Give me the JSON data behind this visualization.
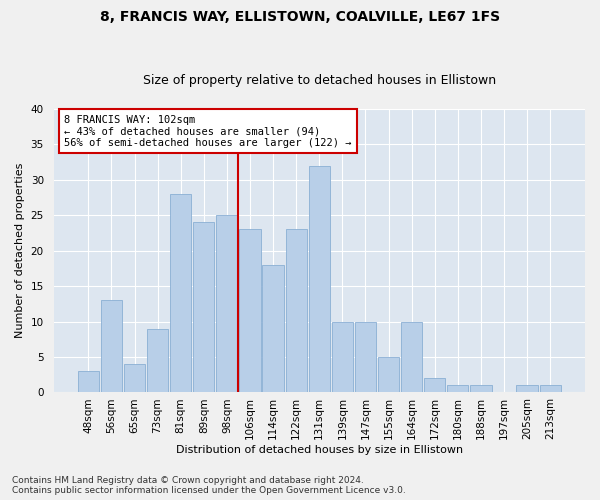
{
  "title": "8, FRANCIS WAY, ELLISTOWN, COALVILLE, LE67 1FS",
  "subtitle": "Size of property relative to detached houses in Ellistown",
  "xlabel": "Distribution of detached houses by size in Ellistown",
  "ylabel": "Number of detached properties",
  "categories": [
    "48sqm",
    "56sqm",
    "65sqm",
    "73sqm",
    "81sqm",
    "89sqm",
    "98sqm",
    "106sqm",
    "114sqm",
    "122sqm",
    "131sqm",
    "139sqm",
    "147sqm",
    "155sqm",
    "164sqm",
    "172sqm",
    "180sqm",
    "188sqm",
    "197sqm",
    "205sqm",
    "213sqm"
  ],
  "values": [
    3,
    13,
    4,
    9,
    28,
    24,
    25,
    23,
    18,
    23,
    32,
    10,
    10,
    5,
    10,
    2,
    1,
    1,
    0,
    1,
    1
  ],
  "bar_color": "#b8cfe8",
  "bar_edge_color": "#8aafd4",
  "vline_index": 6.5,
  "marker_label": "8 FRANCIS WAY: 102sqm",
  "annotation_line1": "← 43% of detached houses are smaller (94)",
  "annotation_line2": "56% of semi-detached houses are larger (122) →",
  "annotation_box_color": "#ffffff",
  "annotation_box_edge": "#cc0000",
  "vline_color": "#cc0000",
  "ylim": [
    0,
    40
  ],
  "yticks": [
    0,
    5,
    10,
    15,
    20,
    25,
    30,
    35,
    40
  ],
  "background_color": "#dde6f0",
  "grid_color": "#ffffff",
  "footer_line1": "Contains HM Land Registry data © Crown copyright and database right 2024.",
  "footer_line2": "Contains public sector information licensed under the Open Government Licence v3.0.",
  "title_fontsize": 10,
  "subtitle_fontsize": 9,
  "axis_label_fontsize": 8,
  "tick_fontsize": 7.5,
  "annotation_fontsize": 7.5,
  "footer_fontsize": 6.5
}
